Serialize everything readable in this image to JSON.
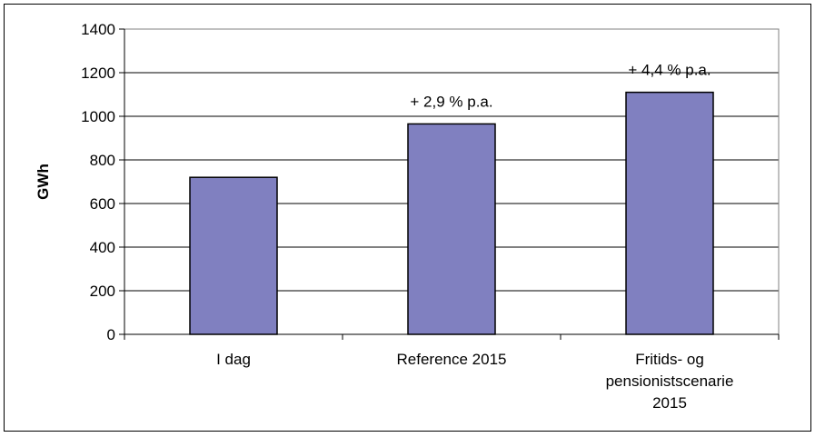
{
  "chart_data": {
    "type": "bar",
    "title": "",
    "xlabel": "",
    "ylabel": "GWh",
    "ylim": [
      0,
      1400
    ],
    "yticks": [
      0,
      200,
      400,
      600,
      800,
      1000,
      1200,
      1400
    ],
    "grid": true,
    "legend": "none",
    "categories": [
      [
        "I dag"
      ],
      [
        "Reference 2015"
      ],
      [
        "Fritids- og",
        "pensionistscenarie",
        "2015"
      ]
    ],
    "values": [
      720,
      965,
      1110
    ],
    "annotations": [
      "",
      "+ 2,9 % p.a.",
      "+ 4,4 % p.a."
    ],
    "colors": {
      "bar_fill": "#8080c0",
      "bar_stroke": "#000000",
      "plot_background": "#ffffff",
      "gridline": "#000000"
    }
  }
}
